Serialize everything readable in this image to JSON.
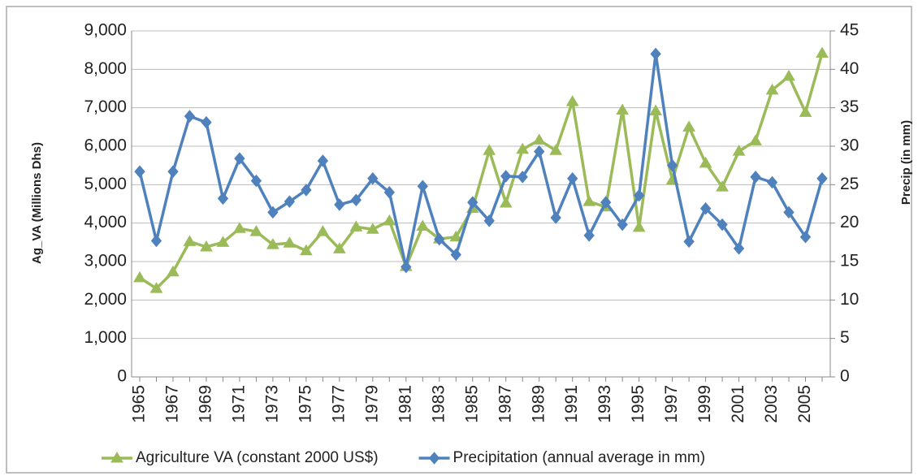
{
  "chart_data": {
    "type": "line",
    "y_label": "Ag_VA (Millions Dhs)",
    "y2_label": "Precip (in mm)",
    "categories": [
      "1965",
      null,
      "1967",
      null,
      "1969",
      null,
      "1971",
      null,
      "1973",
      null,
      "1975",
      null,
      "1977",
      null,
      "1979",
      null,
      "1981",
      null,
      "1983",
      null,
      "1985",
      null,
      "1987",
      null,
      "1989",
      null,
      "1991",
      null,
      "1993",
      null,
      "1995",
      null,
      "1997",
      null,
      "1999",
      null,
      "2001",
      null,
      "2003",
      null,
      "2005",
      null
    ],
    "series": [
      {
        "name": "Agriculture VA (constant 2000 US$)",
        "color": "#9bbb59",
        "marker": "triangle",
        "values": [
          2580,
          2300,
          2730,
          3520,
          3380,
          3500,
          3860,
          3780,
          3440,
          3480,
          3280,
          3780,
          3330,
          3900,
          3840,
          4060,
          2870,
          3920,
          3590,
          3640,
          4380,
          5890,
          4520,
          5920,
          6160,
          5890,
          7160,
          4560,
          4420,
          6940,
          3890,
          6920,
          5120,
          6500,
          5560,
          4940,
          5870,
          6140,
          7460,
          7820,
          6880,
          8420
        ]
      },
      {
        "name": "Precipitation (annual average in mm)",
        "color": "#4f81bd",
        "marker": "diamond",
        "axis": "y2",
        "values": [
          26.7,
          17.7,
          26.7,
          33.9,
          33.1,
          23.2,
          28.4,
          25.5,
          21.4,
          22.8,
          24.3,
          28.1,
          22.4,
          23.0,
          25.8,
          24.0,
          14.3,
          24.8,
          17.9,
          15.9,
          22.7,
          20.3,
          26.1,
          26.0,
          29.3,
          20.7,
          25.8,
          18.4,
          22.7,
          19.8,
          23.6,
          42.0,
          27.5,
          17.6,
          21.9,
          19.8,
          16.7,
          26.0,
          25.3,
          21.4,
          18.2,
          25.8
        ]
      }
    ],
    "ylim": [
      0,
      9000
    ],
    "yticks": [
      0,
      {
        "value": 1000,
        "label": "1,000"
      },
      {
        "value": 2000,
        "label": "2,000"
      },
      {
        "value": 3000,
        "label": "3,000"
      },
      {
        "value": 4000,
        "label": "4,000"
      },
      {
        "value": 5000,
        "label": "5,000"
      },
      {
        "value": 6000,
        "label": "6,000"
      },
      {
        "value": 7000,
        "label": "7,000"
      },
      {
        "value": 8000,
        "label": "8,000"
      },
      {
        "value": 9000,
        "label": "9,000"
      }
    ],
    "y2lim": [
      0,
      45
    ],
    "y2ticks": [
      0,
      5,
      10,
      15,
      20,
      25,
      30,
      35,
      40,
      45
    ],
    "grid": true,
    "legend": "bottom"
  }
}
